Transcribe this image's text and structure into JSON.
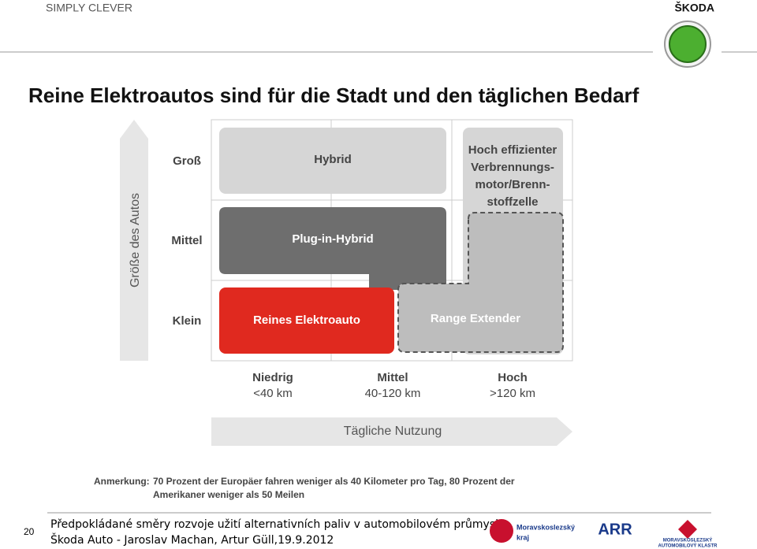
{
  "header": {
    "brand_left": "SIMPLY CLEVER",
    "brand_right": "ŠKODA"
  },
  "title": "Reine Elektroautos sind für die Stadt und den täglichen Bedarf",
  "diagram": {
    "y_axis_label": "Größe des Autos",
    "rows": [
      "Groß",
      "Mittel",
      "Klein"
    ],
    "columns": [
      {
        "name": "Niedrig",
        "range": "<40 km"
      },
      {
        "name": "Mittel",
        "range": "40-120 km"
      },
      {
        "name": "Hoch",
        "range": ">120 km"
      }
    ],
    "x_axis_label": "Tägliche Nutzung",
    "boxes": {
      "hybrid": "Hybrid",
      "plug_in": "Plug-in-Hybrid",
      "electric": "Reines Elektroauto",
      "range_extender": "Range Extender",
      "combustion": [
        "Hoch effizienter",
        "Verbrennungs-",
        "motor/Brenn-",
        "stoffzelle"
      ]
    }
  },
  "note": {
    "label": "Anmerkung:",
    "lines": [
      "70 Prozent der Europäer fahren weniger als 40 Kilometer pro Tag, 80 Prozent der",
      "Amerikaner weniger als 50 Meilen"
    ]
  },
  "footer": {
    "page": "20",
    "line1": "Předpokládané směry rozvoje užití alternativních paliv v automobilovém průmyslu",
    "line2": "Škoda Auto - Jaroslav Machan, Artur Güll,19.9.2012",
    "logos": [
      "Moravskoslezský",
      "kraj",
      "ARR",
      "MORAVSKOSLEZSKÝ",
      "AUTOMOBILOVÝ KLASTR"
    ]
  }
}
